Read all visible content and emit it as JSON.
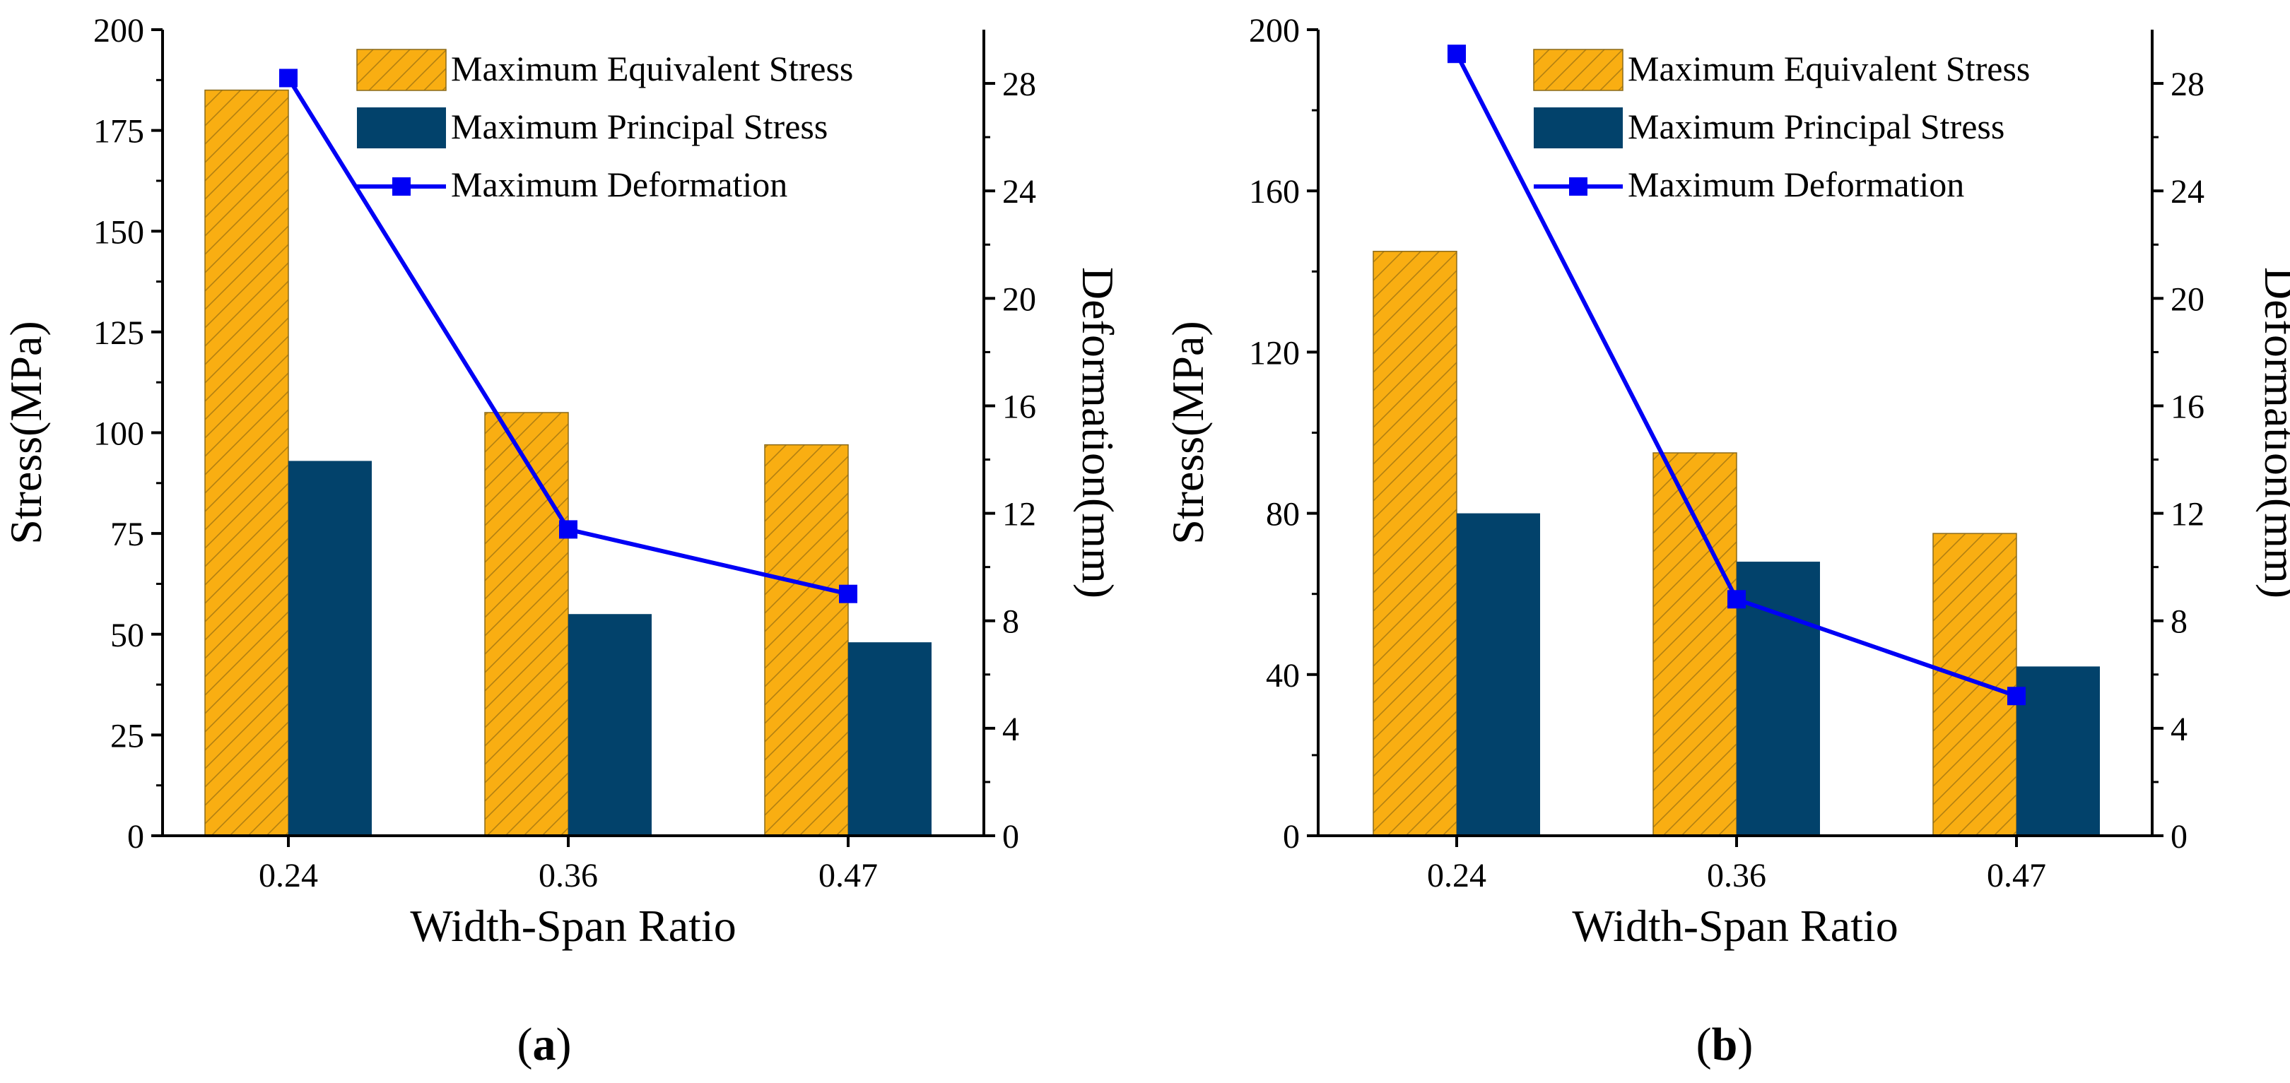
{
  "colors": {
    "equivalent": "#F9AE12",
    "principal": "#02426B",
    "deformation": "#0000F5",
    "axis": "#000000"
  },
  "chart_data": [
    {
      "type": "bar",
      "caption": {
        "open": "(",
        "letter": "a",
        "close": ")"
      },
      "categories": [
        "0.24",
        "0.36",
        "0.47"
      ],
      "xlabel": "Width-Span Ratio",
      "ylabel": "Stress(MPa)",
      "y2label": "Deformation(mm)",
      "ylim": [
        0,
        200
      ],
      "yticks": [
        0,
        25,
        50,
        75,
        100,
        125,
        150,
        175,
        200
      ],
      "y2lim": [
        0,
        30
      ],
      "y2ticks": [
        0,
        4,
        8,
        12,
        16,
        20,
        24,
        28
      ],
      "legend_position": "top-right",
      "series": [
        {
          "name": "Maximum Equivalent Stress",
          "kind": "bar",
          "pattern": "hatched",
          "values": [
            185,
            105,
            97
          ]
        },
        {
          "name": "Maximum Principal Stress",
          "kind": "bar",
          "values": [
            93,
            55,
            48
          ]
        },
        {
          "name": "Maximum Deformation",
          "kind": "line",
          "marker": "square",
          "axis": "right",
          "values": [
            28.2,
            11.4,
            9.0
          ]
        }
      ]
    },
    {
      "type": "bar",
      "caption": {
        "open": "(",
        "letter": "b",
        "close": ")"
      },
      "categories": [
        "0.24",
        "0.36",
        "0.47"
      ],
      "xlabel": "Width-Span Ratio",
      "ylabel": "Stress(MPa)",
      "y2label": "Deformation(mm)",
      "ylim": [
        0,
        200
      ],
      "yticks": [
        0,
        40,
        80,
        120,
        160,
        200
      ],
      "y2lim": [
        0,
        30
      ],
      "y2ticks": [
        0,
        4,
        8,
        12,
        16,
        20,
        24,
        28
      ],
      "legend_position": "top-right",
      "series": [
        {
          "name": "Maximum Equivalent Stress",
          "kind": "bar",
          "pattern": "hatched",
          "values": [
            145,
            95,
            75
          ]
        },
        {
          "name": "Maximum Principal Stress",
          "kind": "bar",
          "values": [
            80,
            68,
            42
          ]
        },
        {
          "name": "Maximum Deformation",
          "kind": "line",
          "marker": "square",
          "axis": "right",
          "values": [
            29.1,
            8.8,
            5.2
          ]
        }
      ]
    }
  ]
}
